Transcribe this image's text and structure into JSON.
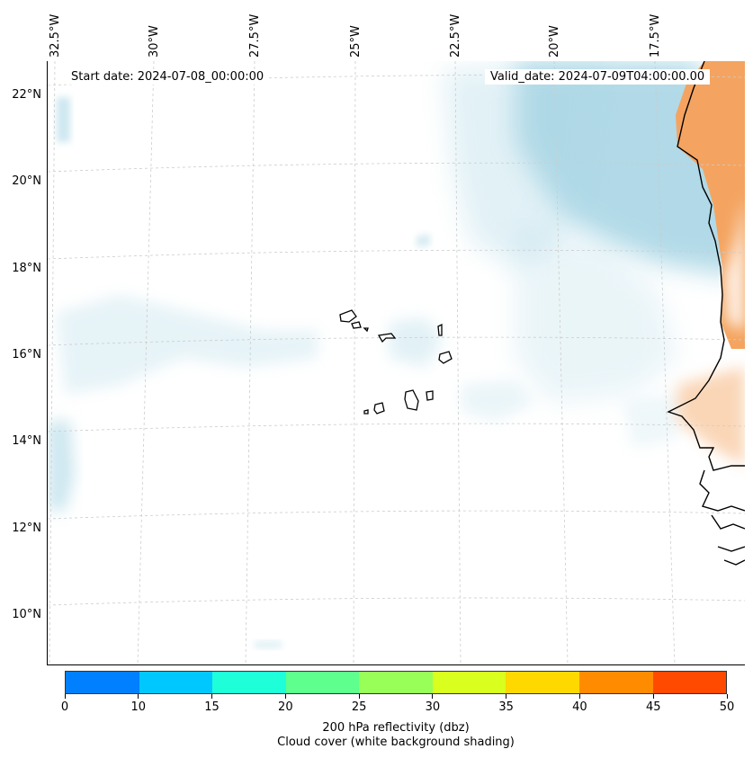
{
  "map": {
    "start_date": "Start date: 2024-07-08_00:00:00",
    "valid_date": "Valid_date: 2024-07-09T04:00:00.00",
    "longitude_labels": [
      "32.5°W",
      "30°W",
      "27.5°W",
      "25°W",
      "22.5°W",
      "20°W",
      "17.5°W"
    ],
    "latitude_labels": [
      "22°N",
      "20°N",
      "18°N",
      "16°N",
      "14°N",
      "12°N",
      "10°N"
    ],
    "extent": {
      "lon_min": -32.75,
      "lon_max": -15.75,
      "lat_min": 8.9,
      "lat_max": 22.8
    },
    "colors": {
      "coastline": "#000000",
      "land_heat": "#f4a460",
      "cloud_shading": "#add8e6",
      "grid": "#cccccc"
    }
  },
  "colorbar": {
    "ticks": [
      "0",
      "10",
      "15",
      "20",
      "25",
      "30",
      "35",
      "40",
      "45",
      "50"
    ],
    "colors": [
      "#0080ff",
      "#00c8ff",
      "#1effd9",
      "#5eff8c",
      "#98ff58",
      "#d8ff1e",
      "#ffd800",
      "#ff8c00",
      "#ff4a00"
    ],
    "label_line1": "200 hPa reflectivity (dbz)",
    "label_line2": "Cloud cover (white background shading)"
  }
}
